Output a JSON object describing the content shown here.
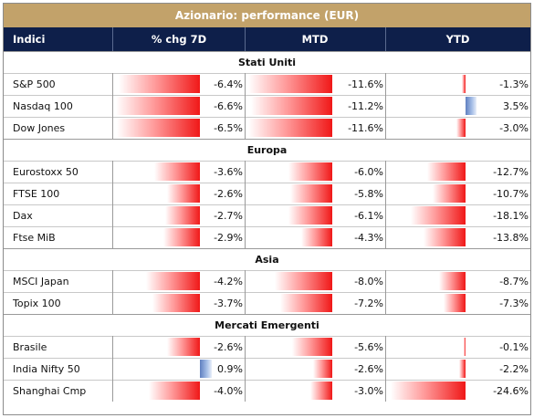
{
  "title": "Azionario: performance (EUR)",
  "columns": [
    "Indici",
    "% chg 7D",
    "MTD",
    "YTD"
  ],
  "colors": {
    "title_bg": "#c2a26a",
    "header_bg": "#0e1f4a",
    "negative_bar": "#f01818",
    "positive_bar": "#5f7fc0"
  },
  "sections": [
    {
      "name": "Stati Uniti",
      "rows": [
        {
          "name": "S&P 500",
          "d7": "-6.4%",
          "mtd": "-11.6%",
          "ytd": "-1.3%"
        },
        {
          "name": "Nasdaq 100",
          "d7": "-6.6%",
          "mtd": "-11.2%",
          "ytd": "3.5%"
        },
        {
          "name": "Dow Jones",
          "d7": "-6.5%",
          "mtd": "-11.6%",
          "ytd": "-3.0%"
        }
      ]
    },
    {
      "name": "Europa",
      "rows": [
        {
          "name": "Eurostoxx 50",
          "d7": "-3.6%",
          "mtd": "-6.0%",
          "ytd": "-12.7%"
        },
        {
          "name": "FTSE 100",
          "d7": "-2.6%",
          "mtd": "-5.8%",
          "ytd": "-10.7%"
        },
        {
          "name": "Dax",
          "d7": "-2.7%",
          "mtd": "-6.1%",
          "ytd": "-18.1%"
        },
        {
          "name": "Ftse MiB",
          "d7": "-2.9%",
          "mtd": "-4.3%",
          "ytd": "-13.8%"
        }
      ]
    },
    {
      "name": "Asia",
      "rows": [
        {
          "name": "MSCI Japan",
          "d7": "-4.2%",
          "mtd": "-8.0%",
          "ytd": "-8.7%"
        },
        {
          "name": "Topix 100",
          "d7": "-3.7%",
          "mtd": "-7.2%",
          "ytd": "-7.3%"
        }
      ]
    },
    {
      "name": "Mercati Emergenti",
      "rows": [
        {
          "name": "Brasile",
          "d7": "-2.6%",
          "mtd": "-5.6%",
          "ytd": "-0.1%"
        },
        {
          "name": "India Nifty 50",
          "d7": "0.9%",
          "mtd": "-2.6%",
          "ytd": "-2.2%"
        },
        {
          "name": "Shanghai Cmp",
          "d7": "-4.0%",
          "mtd": "-3.0%",
          "ytd": "-24.6%"
        }
      ]
    }
  ],
  "chart_data": {
    "type": "table",
    "title": "Azionario: performance (EUR)",
    "columns": [
      "Indici",
      "% chg 7D",
      "MTD",
      "YTD"
    ],
    "rows": [
      [
        "S&P 500",
        -6.4,
        -11.6,
        -1.3
      ],
      [
        "Nasdaq 100",
        -6.6,
        -11.2,
        3.5
      ],
      [
        "Dow Jones",
        -6.5,
        -11.6,
        -3.0
      ],
      [
        "Eurostoxx 50",
        -3.6,
        -6.0,
        -12.7
      ],
      [
        "FTSE 100",
        -2.6,
        -5.8,
        -10.7
      ],
      [
        "Dax",
        -2.7,
        -6.1,
        -18.1
      ],
      [
        "Ftse MiB",
        -2.9,
        -4.3,
        -13.8
      ],
      [
        "MSCI Japan",
        -4.2,
        -8.0,
        -8.7
      ],
      [
        "Topix 100",
        -3.7,
        -7.2,
        -7.3
      ],
      [
        "Brasile",
        -2.6,
        -5.6,
        -0.1
      ],
      [
        "India Nifty 50",
        0.9,
        -2.6,
        -2.2
      ],
      [
        "Shanghai Cmp",
        -4.0,
        -3.0,
        -24.6
      ]
    ]
  }
}
